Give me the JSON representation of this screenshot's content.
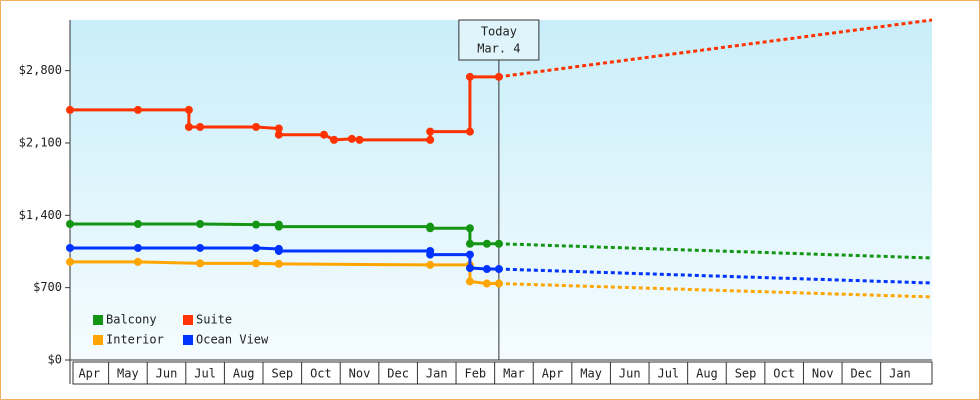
{
  "chart_data": {
    "type": "line",
    "categories": [
      "Apr",
      "May",
      "Jun",
      "Jul",
      "Aug",
      "Sep",
      "Oct",
      "Nov",
      "Dec",
      "Jan",
      "Feb",
      "Mar",
      "Apr",
      "May",
      "Jun",
      "Jul",
      "Aug",
      "Sep",
      "Oct",
      "Nov",
      "Dec",
      "Jan"
    ],
    "xlim": [
      0,
      22.33
    ],
    "ylim": [
      0,
      3290
    ],
    "yticks": [
      {
        "value": 0,
        "label": "$0"
      },
      {
        "value": 700,
        "label": "$700"
      },
      {
        "value": 1400,
        "label": "$1,400"
      },
      {
        "value": 2100,
        "label": "$2,100"
      },
      {
        "value": 2800,
        "label": "$2,800"
      }
    ],
    "annotation": {
      "lines": [
        "Today",
        "Mar. 4"
      ],
      "x": 11.11
    },
    "series": [
      {
        "name": "Balcony",
        "color": "#149614",
        "x": [
          0,
          1.76,
          3.37,
          4.82,
          5.41,
          5.41,
          9.33,
          9.33,
          10.36,
          10.36,
          10.8,
          11.11
        ],
        "values": [
          1316,
          1316,
          1316,
          1310,
          1310,
          1290,
          1290,
          1275,
          1275,
          1125,
          1125,
          1125
        ],
        "projection": {
          "x": [
            11.11,
            22.33
          ],
          "values": [
            1125,
            987
          ]
        }
      },
      {
        "name": "Suite",
        "color": "#ff3300",
        "x": [
          0,
          1.76,
          3.08,
          3.08,
          3.37,
          4.82,
          5.41,
          5.41,
          6.58,
          6.84,
          7.3,
          7.5,
          9.33,
          9.33,
          10.36,
          10.36,
          11.11
        ],
        "values": [
          2420,
          2420,
          2420,
          2255,
          2255,
          2255,
          2240,
          2180,
          2180,
          2130,
          2140,
          2130,
          2130,
          2210,
          2210,
          2740,
          2740
        ],
        "projection": {
          "x": [
            11.11,
            22.33
          ],
          "values": [
            2740,
            3290
          ]
        }
      },
      {
        "name": "Interior",
        "color": "#ffa500",
        "x": [
          0,
          1.76,
          3.37,
          4.82,
          5.41,
          9.33,
          10.36,
          10.36,
          10.8,
          11.11
        ],
        "values": [
          949,
          949,
          935,
          935,
          930,
          920,
          920,
          760,
          740,
          740
        ],
        "projection": {
          "x": [
            11.11,
            22.33
          ],
          "values": [
            740,
            610
          ]
        }
      },
      {
        "name": "Ocean View",
        "color": "#0033ff",
        "x": [
          0,
          1.76,
          3.37,
          4.82,
          5.41,
          5.41,
          9.33,
          9.33,
          10.36,
          10.36,
          10.8,
          11.11
        ],
        "values": [
          1084,
          1084,
          1084,
          1084,
          1075,
          1055,
          1055,
          1020,
          1020,
          890,
          880,
          880
        ],
        "projection": {
          "x": [
            11.11,
            22.33
          ],
          "values": [
            880,
            745
          ]
        }
      }
    ]
  }
}
